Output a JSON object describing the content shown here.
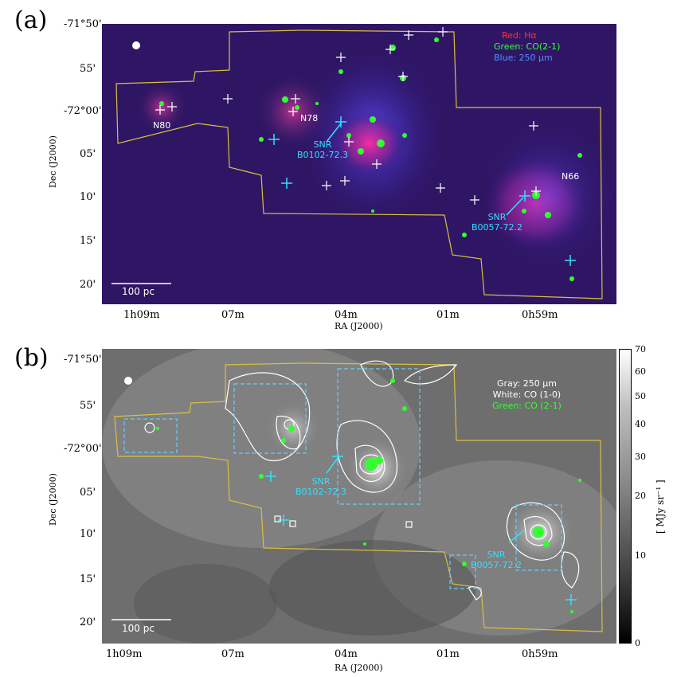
{
  "panel_a": {
    "label": "(a)",
    "legend": [
      "Red: Hα",
      "Green: CO(2-1)",
      "Blue:  250 μm"
    ],
    "legend_colors": [
      "#ff3030",
      "#33ff33",
      "#4a80ff"
    ],
    "region_labels": [
      "N80",
      "N78",
      "N66"
    ],
    "snr_labels": [
      [
        "SNR",
        "B0102-72.3"
      ],
      [
        "SNR",
        "B0057-72.2"
      ]
    ],
    "scalebar": "100 pc",
    "y_ticks": [
      "-71°50'",
      "55'",
      "-72°00'",
      "05'",
      "10'",
      "15'",
      "20'"
    ],
    "x_ticks": [
      "1h09m",
      "07m",
      "04m",
      "01m",
      "0h59m"
    ],
    "xlabel": "RA (J2000)",
    "ylabel": "Dec (J2000)"
  },
  "panel_b": {
    "label": "(b)",
    "legend": [
      "Gray: 250 μm",
      "White: CO (1-0)",
      "Green: CO (2-1)"
    ],
    "legend_colors": [
      "#ffffff",
      "#ffffff",
      "#33ff33"
    ],
    "snr_labels": [
      [
        "SNR",
        "B0102-72.3"
      ],
      [
        "SNR",
        "B0057-72.2"
      ]
    ],
    "scalebar": "100 pc",
    "y_ticks": [
      "-71°50'",
      "55'",
      "-72°00'",
      "05'",
      "10'",
      "15'",
      "20'"
    ],
    "x_ticks": [
      "1h09m",
      "07m",
      "04m",
      "01m",
      "0h59m"
    ],
    "xlabel": "RA (J2000)",
    "ylabel": "Dec (J2000)",
    "colorbar_ticks": [
      "70",
      "60",
      "50",
      "40",
      "30",
      "20",
      "10",
      "0"
    ],
    "colorbar_label": "[ MJy sr⁻¹ ]"
  }
}
